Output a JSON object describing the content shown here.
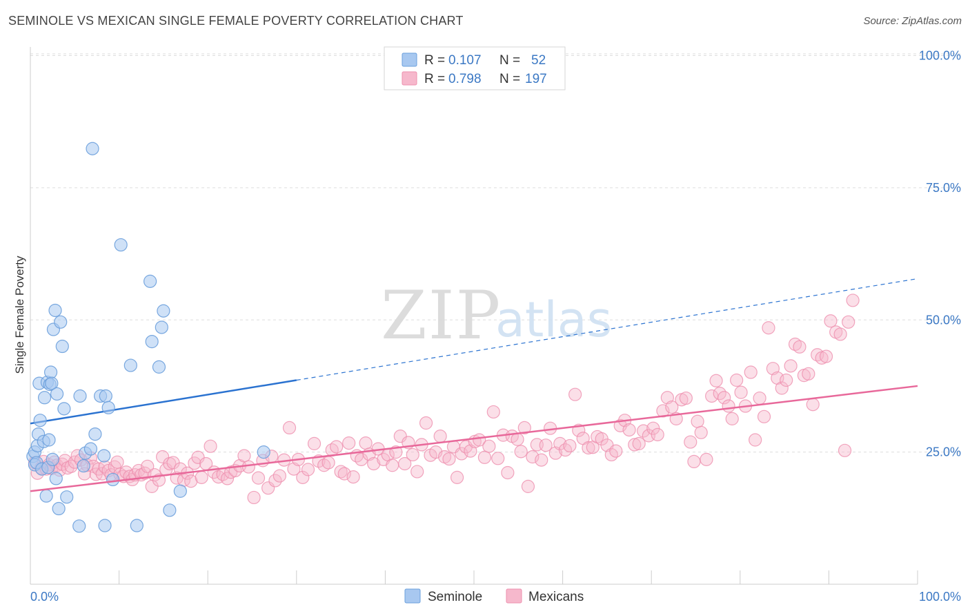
{
  "header": {
    "title": "SEMINOLE VS MEXICAN SINGLE FEMALE POVERTY CORRELATION CHART",
    "source": "Source: ZipAtlas.com"
  },
  "watermark": {
    "zip": "ZIP",
    "atlas": "atlas"
  },
  "legend_top": {
    "rows": [
      {
        "r_label": "R = ",
        "r_value": "0.107",
        "n_label": "N = ",
        "n_value": "52"
      },
      {
        "r_label": "R = ",
        "r_value": "0.798",
        "n_label": "N = ",
        "n_value": "197"
      }
    ]
  },
  "legend_bottom": {
    "items": [
      {
        "label": "Seminole"
      },
      {
        "label": "Mexicans"
      }
    ]
  },
  "colors": {
    "seminole_fill": "#a8c8f0",
    "seminole_stroke": "#6a9fdc",
    "seminole_line": "#2a72d0",
    "mexicans_fill": "#f6b8cc",
    "mexicans_stroke": "#ee8fae",
    "mexicans_line": "#e8689a",
    "tick_text": "#3b78c4",
    "grid": "#dddddd"
  },
  "chart_data": {
    "type": "scatter",
    "title": "SEMINOLE VS MEXICAN SINGLE FEMALE POVERTY CORRELATION CHART",
    "xlabel": "",
    "ylabel": "Single Female Poverty",
    "xlim": [
      0,
      100
    ],
    "ylim": [
      0,
      103
    ],
    "x_tick_labels": [
      "0.0%",
      "100.0%"
    ],
    "y_ticks": [
      25,
      50,
      75,
      100
    ],
    "y_tick_labels": [
      "25.0%",
      "50.0%",
      "75.0%",
      "100.0%"
    ],
    "grid": "horizontal dashed",
    "series": [
      {
        "name": "Seminole",
        "R": 0.107,
        "N": 52,
        "trend": {
          "x_solid": [
            0,
            30
          ],
          "y_solid": [
            30.4,
            38.6
          ],
          "x_dashed": [
            30,
            100
          ],
          "y_dashed": [
            38.6,
            57.8
          ]
        },
        "points": [
          [
            0.3,
            24.2
          ],
          [
            0.5,
            22.6
          ],
          [
            0.5,
            25.0
          ],
          [
            0.7,
            23.0
          ],
          [
            0.8,
            26.2
          ],
          [
            0.9,
            28.4
          ],
          [
            1.0,
            38.0
          ],
          [
            1.1,
            31.0
          ],
          [
            1.3,
            21.8
          ],
          [
            1.5,
            27.0
          ],
          [
            1.6,
            35.3
          ],
          [
            1.8,
            16.7
          ],
          [
            1.9,
            38.2
          ],
          [
            2.0,
            22.1
          ],
          [
            2.1,
            27.3
          ],
          [
            2.2,
            37.8
          ],
          [
            2.3,
            40.1
          ],
          [
            2.4,
            38.0
          ],
          [
            2.5,
            23.6
          ],
          [
            2.6,
            48.2
          ],
          [
            2.8,
            51.8
          ],
          [
            2.9,
            20.0
          ],
          [
            3.0,
            36.0
          ],
          [
            3.2,
            14.3
          ],
          [
            3.4,
            49.6
          ],
          [
            3.6,
            45.0
          ],
          [
            3.8,
            33.2
          ],
          [
            4.1,
            16.5
          ],
          [
            5.5,
            11.0
          ],
          [
            5.6,
            35.6
          ],
          [
            6.0,
            22.4
          ],
          [
            6.2,
            24.8
          ],
          [
            6.8,
            25.6
          ],
          [
            7.0,
            82.4
          ],
          [
            7.3,
            28.4
          ],
          [
            7.9,
            35.6
          ],
          [
            8.3,
            24.3
          ],
          [
            8.4,
            11.1
          ],
          [
            8.5,
            35.6
          ],
          [
            8.8,
            33.4
          ],
          [
            9.3,
            19.8
          ],
          [
            10.2,
            64.2
          ],
          [
            11.3,
            41.4
          ],
          [
            12.0,
            11.1
          ],
          [
            13.5,
            57.3
          ],
          [
            13.7,
            45.9
          ],
          [
            14.5,
            41.1
          ],
          [
            14.8,
            48.6
          ],
          [
            15.0,
            51.7
          ],
          [
            15.7,
            14.0
          ],
          [
            16.9,
            17.6
          ],
          [
            26.3,
            25.0
          ]
        ]
      },
      {
        "name": "Mexicans",
        "R": 0.798,
        "N": 197,
        "trend": {
          "x": [
            0,
            100
          ],
          "y": [
            17.6,
            37.5
          ]
        },
        "points": [
          [
            0.5,
            23.0
          ],
          [
            0.8,
            21.0
          ],
          [
            1.2,
            22.0
          ],
          [
            1.5,
            23.2
          ],
          [
            1.8,
            21.8
          ],
          [
            2.1,
            22.6
          ],
          [
            2.4,
            21.9
          ],
          [
            2.7,
            23.1
          ],
          [
            3.0,
            22.5
          ],
          [
            3.3,
            21.6
          ],
          [
            3.6,
            22.7
          ],
          [
            3.9,
            23.4
          ],
          [
            4.2,
            22.0
          ],
          [
            4.6,
            22.3
          ],
          [
            5.0,
            23.1
          ],
          [
            5.3,
            24.3
          ],
          [
            5.7,
            23.5
          ],
          [
            6.1,
            20.9
          ],
          [
            6.4,
            22.5
          ],
          [
            6.8,
            23.9
          ],
          [
            7.1,
            22.3
          ],
          [
            7.4,
            20.8
          ],
          [
            7.7,
            21.8
          ],
          [
            8.1,
            20.9
          ],
          [
            8.4,
            22.2
          ],
          [
            8.8,
            21.5
          ],
          [
            9.1,
            20.7
          ],
          [
            9.5,
            22.2
          ],
          [
            9.8,
            23.1
          ],
          [
            10.1,
            20.8
          ],
          [
            10.5,
            20.4
          ],
          [
            10.8,
            21.2
          ],
          [
            11.2,
            20.4
          ],
          [
            11.5,
            19.8
          ],
          [
            11.8,
            20.7
          ],
          [
            12.2,
            21.5
          ],
          [
            12.5,
            20.7
          ],
          [
            12.9,
            21.0
          ],
          [
            13.2,
            22.3
          ],
          [
            13.7,
            18.5
          ],
          [
            14.0,
            20.7
          ],
          [
            14.5,
            19.7
          ],
          [
            14.9,
            24.1
          ],
          [
            15.3,
            21.7
          ],
          [
            15.7,
            22.8
          ],
          [
            16.1,
            23.0
          ],
          [
            16.5,
            20.1
          ],
          [
            16.9,
            21.8
          ],
          [
            17.3,
            19.7
          ],
          [
            17.7,
            21.0
          ],
          [
            18.1,
            19.5
          ],
          [
            18.5,
            22.9
          ],
          [
            18.9,
            24.0
          ],
          [
            19.3,
            20.2
          ],
          [
            19.8,
            22.8
          ],
          [
            20.3,
            26.1
          ],
          [
            20.7,
            21.2
          ],
          [
            21.2,
            20.3
          ],
          [
            21.7,
            20.8
          ],
          [
            22.2,
            20.0
          ],
          [
            22.6,
            21.2
          ],
          [
            23.1,
            21.5
          ],
          [
            23.6,
            22.4
          ],
          [
            24.1,
            24.3
          ],
          [
            24.6,
            22.2
          ],
          [
            25.2,
            16.4
          ],
          [
            25.7,
            20.1
          ],
          [
            26.2,
            23.4
          ],
          [
            26.8,
            18.2
          ],
          [
            27.2,
            24.2
          ],
          [
            27.6,
            19.6
          ],
          [
            28.1,
            20.5
          ],
          [
            28.6,
            23.5
          ],
          [
            29.2,
            29.6
          ],
          [
            29.7,
            21.8
          ],
          [
            30.2,
            23.6
          ],
          [
            30.7,
            20.2
          ],
          [
            31.3,
            21.7
          ],
          [
            32.0,
            26.6
          ],
          [
            32.5,
            23.3
          ],
          [
            33.1,
            22.5
          ],
          [
            33.6,
            23.0
          ],
          [
            34.0,
            25.4
          ],
          [
            34.5,
            26.0
          ],
          [
            35.0,
            21.3
          ],
          [
            35.4,
            20.9
          ],
          [
            35.9,
            26.7
          ],
          [
            36.4,
            20.3
          ],
          [
            36.8,
            24.3
          ],
          [
            37.3,
            23.6
          ],
          [
            37.8,
            26.7
          ],
          [
            38.2,
            24.6
          ],
          [
            38.7,
            22.8
          ],
          [
            39.2,
            25.6
          ],
          [
            39.8,
            23.6
          ],
          [
            40.3,
            24.5
          ],
          [
            40.8,
            22.5
          ],
          [
            41.2,
            25.0
          ],
          [
            41.7,
            28.0
          ],
          [
            42.2,
            22.8
          ],
          [
            42.6,
            26.8
          ],
          [
            43.1,
            24.5
          ],
          [
            43.6,
            21.3
          ],
          [
            44.1,
            26.4
          ],
          [
            44.6,
            30.5
          ],
          [
            45.1,
            24.4
          ],
          [
            45.7,
            25.0
          ],
          [
            46.2,
            28.0
          ],
          [
            46.7,
            24.1
          ],
          [
            47.2,
            23.7
          ],
          [
            47.7,
            26.0
          ],
          [
            48.1,
            20.2
          ],
          [
            48.6,
            24.7
          ],
          [
            49.1,
            26.0
          ],
          [
            49.6,
            25.2
          ],
          [
            50.1,
            27.0
          ],
          [
            50.6,
            27.3
          ],
          [
            51.2,
            24.0
          ],
          [
            51.7,
            26.1
          ],
          [
            52.2,
            32.6
          ],
          [
            52.7,
            23.8
          ],
          [
            53.3,
            28.2
          ],
          [
            53.8,
            21.1
          ],
          [
            54.3,
            28.0
          ],
          [
            54.9,
            27.4
          ],
          [
            55.3,
            25.1
          ],
          [
            55.7,
            29.6
          ],
          [
            56.1,
            18.5
          ],
          [
            56.6,
            24.1
          ],
          [
            57.1,
            26.4
          ],
          [
            57.6,
            23.5
          ],
          [
            58.1,
            26.3
          ],
          [
            58.6,
            29.5
          ],
          [
            59.2,
            24.8
          ],
          [
            59.7,
            26.6
          ],
          [
            60.3,
            25.4
          ],
          [
            60.8,
            26.2
          ],
          [
            61.4,
            35.9
          ],
          [
            61.8,
            29.1
          ],
          [
            62.3,
            27.6
          ],
          [
            62.9,
            25.8
          ],
          [
            63.4,
            25.9
          ],
          [
            63.9,
            27.9
          ],
          [
            64.4,
            27.5
          ],
          [
            65.0,
            26.3
          ],
          [
            65.5,
            24.5
          ],
          [
            66.0,
            25.2
          ],
          [
            66.5,
            30.0
          ],
          [
            67.0,
            31.0
          ],
          [
            67.5,
            29.2
          ],
          [
            68.1,
            26.4
          ],
          [
            68.6,
            26.6
          ],
          [
            69.1,
            29.0
          ],
          [
            69.7,
            28.1
          ],
          [
            70.2,
            29.5
          ],
          [
            70.7,
            28.3
          ],
          [
            71.3,
            32.8
          ],
          [
            71.8,
            35.3
          ],
          [
            72.3,
            33.5
          ],
          [
            72.8,
            31.3
          ],
          [
            73.4,
            34.9
          ],
          [
            73.9,
            35.2
          ],
          [
            74.4,
            26.9
          ],
          [
            74.8,
            23.2
          ],
          [
            75.2,
            30.8
          ],
          [
            75.6,
            28.7
          ],
          [
            76.2,
            23.6
          ],
          [
            76.8,
            35.6
          ],
          [
            77.3,
            38.5
          ],
          [
            77.7,
            36.1
          ],
          [
            78.2,
            35.3
          ],
          [
            78.7,
            33.7
          ],
          [
            79.1,
            31.3
          ],
          [
            79.6,
            38.6
          ],
          [
            80.1,
            36.3
          ],
          [
            80.6,
            33.7
          ],
          [
            81.2,
            40.1
          ],
          [
            81.7,
            27.3
          ],
          [
            82.2,
            35.2
          ],
          [
            82.7,
            31.7
          ],
          [
            83.2,
            48.5
          ],
          [
            83.7,
            40.8
          ],
          [
            84.2,
            39.0
          ],
          [
            84.7,
            37.1
          ],
          [
            85.2,
            38.6
          ],
          [
            85.7,
            41.3
          ],
          [
            86.2,
            45.4
          ],
          [
            86.7,
            44.9
          ],
          [
            87.2,
            39.5
          ],
          [
            87.7,
            39.8
          ],
          [
            88.2,
            34.0
          ],
          [
            88.7,
            43.4
          ],
          [
            89.2,
            42.8
          ],
          [
            89.7,
            43.1
          ],
          [
            90.2,
            49.8
          ],
          [
            90.8,
            47.7
          ],
          [
            91.3,
            47.3
          ],
          [
            91.8,
            25.3
          ],
          [
            92.2,
            49.6
          ],
          [
            92.7,
            53.7
          ]
        ]
      }
    ]
  }
}
